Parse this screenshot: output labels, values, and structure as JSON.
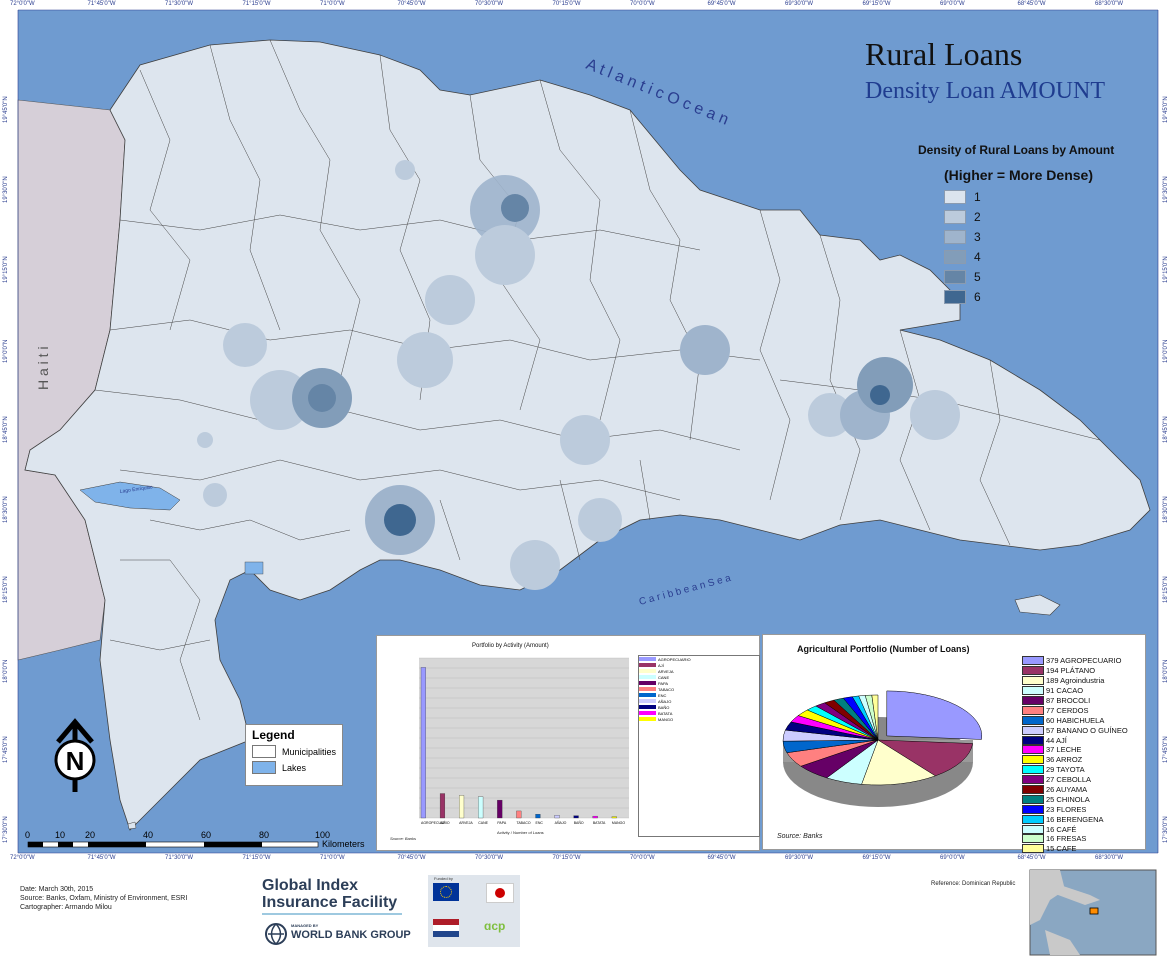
{
  "map": {
    "title": "Rural Loans",
    "subtitle": "Density Loan AMOUNT",
    "labels": {
      "atlantic": "A t l a n t i c     O c e a n",
      "haiti": "H a i t i",
      "caribbean": "C a r i b b e a n     S e a",
      "lake": "Lago Enriquillo"
    },
    "colors": {
      "ocean": "#6f9bd0",
      "land": "#dde5ee",
      "haiti": "#d6cfd8",
      "lake": "#7fb3ea",
      "border": "#3f3f3f"
    }
  },
  "density_legend": {
    "title": "Density of Rural Loans by Amount",
    "subtitle": "(Higher = More Dense)",
    "classes": [
      {
        "label": "1",
        "color": "#dbe4ee"
      },
      {
        "label": "2",
        "color": "#bccbdc"
      },
      {
        "label": "3",
        "color": "#9fb4cc"
      },
      {
        "label": "4",
        "color": "#829db9"
      },
      {
        "label": "5",
        "color": "#6585a6"
      },
      {
        "label": "6",
        "color": "#3f6790"
      }
    ]
  },
  "legend": {
    "title": "Legend",
    "items": [
      {
        "label": "Municipalities",
        "color": "#ffffff"
      },
      {
        "label": "Lakes",
        "color": "#7fb3ea"
      }
    ]
  },
  "scale_bar": {
    "ticks": [
      "0",
      "10",
      "20",
      "40",
      "60",
      "80",
      "100"
    ],
    "unit": "Kilometers"
  },
  "north_arrow": {
    "label": "N"
  },
  "graticule": {
    "longitudes": [
      "72°0'0\"W",
      "71°45'0\"W",
      "71°30'0\"W",
      "71°15'0\"W",
      "71°0'0\"W",
      "70°45'0\"W",
      "70°30'0\"W",
      "70°15'0\"W",
      "70°0'0\"W",
      "69°45'0\"W",
      "69°30'0\"W",
      "69°15'0\"W",
      "69°0'0\"W",
      "68°45'0\"W",
      "68°30'0\"W"
    ],
    "latitudes": [
      "19°45'0\"N",
      "19°30'0\"N",
      "19°15'0\"N",
      "19°0'0\"N",
      "18°45'0\"N",
      "18°30'0\"N",
      "18°15'0\"N",
      "18°0'0\"N",
      "17°45'0\"N",
      "17°30'0\"N"
    ]
  },
  "pie_chart": {
    "title": "Agricultural Portfolio (Number of Loans)",
    "source": "Source: Banks",
    "chart_data": {
      "type": "pie",
      "title": "Agricultural Portfolio (Number of Loans)",
      "slices": [
        {
          "label": "379 AGROPECUARIO",
          "value": 379,
          "color": "#9999ff"
        },
        {
          "label": "194 PLÁTANO",
          "value": 194,
          "color": "#993366"
        },
        {
          "label": "189 Agroindustria",
          "value": 189,
          "color": "#ffffcc"
        },
        {
          "label": "91 CACAO",
          "value": 91,
          "color": "#ccffff"
        },
        {
          "label": "87 BROCOLI",
          "value": 87,
          "color": "#660066"
        },
        {
          "label": "77 CERDOS",
          "value": 77,
          "color": "#ff8080"
        },
        {
          "label": "60 HABICHUELA",
          "value": 60,
          "color": "#0066cc"
        },
        {
          "label": "57 BANANO O GUÍNEO",
          "value": 57,
          "color": "#ccccff"
        },
        {
          "label": "44 AJÍ",
          "value": 44,
          "color": "#000080"
        },
        {
          "label": "37 LECHE",
          "value": 37,
          "color": "#ff00ff"
        },
        {
          "label": "36 ARROZ",
          "value": 36,
          "color": "#ffff00"
        },
        {
          "label": "29 TAYOTA",
          "value": 29,
          "color": "#00ffff"
        },
        {
          "label": "27 CEBOLLA",
          "value": 27,
          "color": "#800080"
        },
        {
          "label": "26 AUYAMA",
          "value": 26,
          "color": "#800000"
        },
        {
          "label": "25 CHINOLA",
          "value": 25,
          "color": "#008080"
        },
        {
          "label": "23 FLORES",
          "value": 23,
          "color": "#0000ff"
        },
        {
          "label": "16 BERENGENA",
          "value": 16,
          "color": "#00ccff"
        },
        {
          "label": "16 CAFÉ",
          "value": 16,
          "color": "#ccffff"
        },
        {
          "label": "16 FRESAS",
          "value": 16,
          "color": "#ccffcc"
        },
        {
          "label": "15 CAFE",
          "value": 15,
          "color": "#ffff99"
        }
      ]
    }
  },
  "bar_chart": {
    "title": "Portfolio by Activity (Amount)",
    "xlabel": "Activity / Number of Loans",
    "source": "Source: Banks",
    "chart_data": {
      "type": "bar",
      "title": "Portfolio by Activity (Amount)",
      "categories": [
        "AGROPECUARIO",
        "AJÍ",
        "ARVEJA",
        "CANE",
        "PAPA",
        "TABACO",
        "ENC",
        "AÑAJO",
        "BAÑO",
        "BATATA",
        "MANGO"
      ],
      "values": [
        32000000,
        5200000,
        4800000,
        4500000,
        3800000,
        1500000,
        800000,
        600000,
        500000,
        400000,
        300000
      ],
      "ylim": [
        0,
        34000000
      ]
    }
  },
  "footer": {
    "date": "Date: March 30th, 2015",
    "source": "Source: Banks, Oxfam, Ministry of Environment, ESRI",
    "cartographer": "Cartographer: Armando Milou",
    "reference": "Reference: Dominican Republic",
    "gif_line1": "Global Index",
    "gif_line2": "Insurance Facility",
    "wbg": "WORLD BANK GROUP",
    "wbg_managed": "MANAGED BY",
    "funded": "Funded by"
  }
}
